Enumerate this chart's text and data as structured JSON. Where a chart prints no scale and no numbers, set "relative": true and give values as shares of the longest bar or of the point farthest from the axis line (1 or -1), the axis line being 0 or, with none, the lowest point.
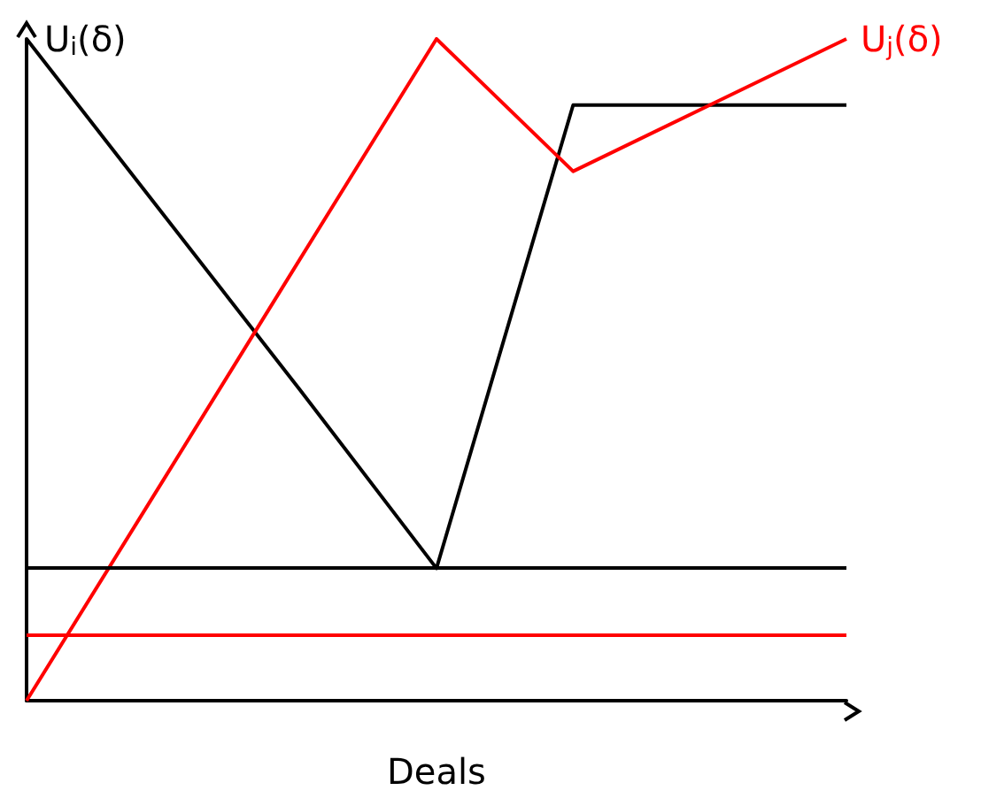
{
  "chart_data": {
    "type": "line",
    "relative": true,
    "xlabel": "Deals",
    "ylabel": "U$_{i}$(δ)",
    "categories": [
      null,
      null,
      null,
      null,
      null,
      null,
      null
    ],
    "series": [
      {
        "color": "#000000",
        "values": [
          1,
          0.735,
          0.47,
          0.2,
          0.9,
          0.9,
          0.9
        ]
      },
      {
        "name": "U$_{j}$(δ)",
        "color": "#ff0000",
        "values": [
          0,
          0.333,
          0.667,
          1,
          0.8,
          0.9,
          1
        ]
      }
    ],
    "ref_lines": [
      {
        "axis": "y",
        "value": 0.2,
        "color": "#000000"
      },
      {
        "axis": "y",
        "value": 0.1,
        "color": "#ff0000"
      }
    ],
    "grid": false,
    "marker": "none",
    "line_style": "solid"
  }
}
